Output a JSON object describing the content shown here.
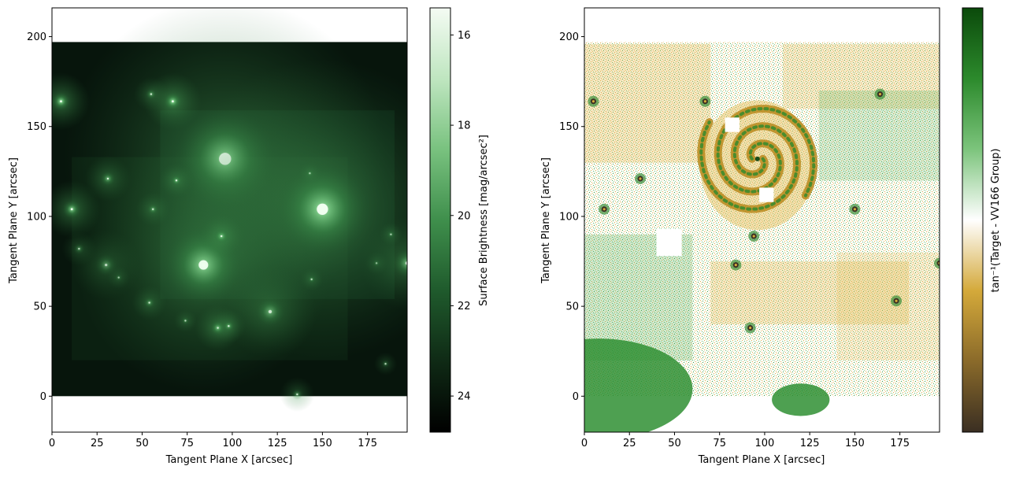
{
  "chart_data": [
    {
      "type": "heatmap",
      "title": "",
      "xlabel": "Tangent Plane X [arcsec]",
      "ylabel": "Tangent Plane Y [arcsec]",
      "xlim": [
        0,
        197
      ],
      "ylim": [
        -20,
        216
      ],
      "xticks": [
        0,
        25,
        50,
        75,
        100,
        125,
        150,
        175
      ],
      "yticks": [
        0,
        50,
        100,
        150,
        200
      ],
      "image_extent": {
        "x": [
          0,
          197
        ],
        "y": [
          0,
          197
        ]
      },
      "background_color": "#07150c",
      "grid": false,
      "colorbar": {
        "label": "Surface Brightness [mag/arcsec²]",
        "range": [
          24.8,
          15.4
        ],
        "ticks": [
          16,
          18,
          20,
          22,
          24
        ],
        "inverted": true,
        "colors": [
          "#000000",
          "#0f2a15",
          "#1f5a2c",
          "#3f8f4c",
          "#79c27f",
          "#bfe6c0",
          "#f4fbf3"
        ]
      },
      "sources": [
        {
          "x": 96,
          "y": 132,
          "r": 28,
          "brightness": 0.9
        },
        {
          "x": 150,
          "y": 104,
          "r": 26,
          "brightness": 0.95
        },
        {
          "x": 84,
          "y": 73,
          "r": 22,
          "brightness": 0.85
        },
        {
          "x": 5,
          "y": 164,
          "r": 5,
          "brightness": 1.0
        },
        {
          "x": 67,
          "y": 164,
          "r": 5,
          "brightness": 1.0
        },
        {
          "x": 11,
          "y": 104,
          "r": 5,
          "brightness": 0.9
        },
        {
          "x": 94,
          "y": 89,
          "r": 4,
          "brightness": 0.8
        },
        {
          "x": 31,
          "y": 121,
          "r": 4,
          "brightness": 0.7
        },
        {
          "x": 69,
          "y": 120,
          "r": 3,
          "brightness": 0.7
        },
        {
          "x": 56,
          "y": 104,
          "r": 3,
          "brightness": 0.6
        },
        {
          "x": 55,
          "y": 168,
          "r": 3,
          "brightness": 0.6
        },
        {
          "x": 30,
          "y": 73,
          "r": 6,
          "brightness": 0.5
        },
        {
          "x": 121,
          "y": 47,
          "r": 8,
          "brightness": 0.6
        },
        {
          "x": 92,
          "y": 38,
          "r": 4,
          "brightness": 0.85
        },
        {
          "x": 98,
          "y": 39,
          "r": 3,
          "brightness": 0.7
        },
        {
          "x": 54,
          "y": 52,
          "r": 3,
          "brightness": 0.6
        },
        {
          "x": 74,
          "y": 42,
          "r": 2,
          "brightness": 0.5
        },
        {
          "x": 15,
          "y": 82,
          "r": 3,
          "brightness": 0.5
        },
        {
          "x": 37,
          "y": 66,
          "r": 2,
          "brightness": 0.4
        },
        {
          "x": 144,
          "y": 65,
          "r": 2,
          "brightness": 0.5
        },
        {
          "x": 188,
          "y": 90,
          "r": 2,
          "brightness": 0.5
        },
        {
          "x": 180,
          "y": 74,
          "r": 2,
          "brightness": 0.4
        },
        {
          "x": 197,
          "y": 74,
          "r": 8,
          "brightness": 0.7
        },
        {
          "x": 185,
          "y": 18,
          "r": 2,
          "brightness": 0.5
        },
        {
          "x": 136,
          "y": 1,
          "r": 3,
          "brightness": 0.6
        },
        {
          "x": 143,
          "y": 124,
          "r": 2,
          "brightness": 0.4
        }
      ]
    },
    {
      "type": "heatmap",
      "title": "",
      "xlabel": "Tangent Plane X [arcsec]",
      "ylabel": "Tangent Plane Y [arcsec]",
      "xlim": [
        0,
        197
      ],
      "ylim": [
        -20,
        216
      ],
      "xticks": [
        0,
        25,
        50,
        75,
        100,
        125,
        150,
        175
      ],
      "yticks": [
        0,
        50,
        100,
        150,
        200
      ],
      "image_extent": {
        "x": [
          0,
          197
        ],
        "y": [
          0,
          197
        ]
      },
      "grid": false,
      "colorbar": {
        "label": "tan⁻¹(Target - VV166 Group)",
        "ticks": [],
        "colors": [
          "#3a2e22",
          "#8a6a2a",
          "#d4a93a",
          "#ffffff",
          "#7cc47c",
          "#2c8a2c",
          "#0b4a0b"
        ]
      },
      "masked_regions": [
        {
          "x": [
            78,
            86
          ],
          "y": [
            147,
            155
          ]
        },
        {
          "x": [
            97,
            105
          ],
          "y": [
            108,
            116
          ]
        },
        {
          "x": [
            40,
            54
          ],
          "y": [
            78,
            93
          ]
        }
      ],
      "galaxy_center": {
        "x": 96,
        "y": 132
      },
      "sources": [
        {
          "x": 5,
          "y": 164
        },
        {
          "x": 67,
          "y": 164
        },
        {
          "x": 11,
          "y": 104
        },
        {
          "x": 94,
          "y": 89
        },
        {
          "x": 92,
          "y": 38
        },
        {
          "x": 84,
          "y": 73
        },
        {
          "x": 150,
          "y": 104
        },
        {
          "x": 197,
          "y": 74
        },
        {
          "x": 31,
          "y": 121
        },
        {
          "x": 173,
          "y": 53
        },
        {
          "x": 164,
          "y": 168
        }
      ]
    }
  ]
}
